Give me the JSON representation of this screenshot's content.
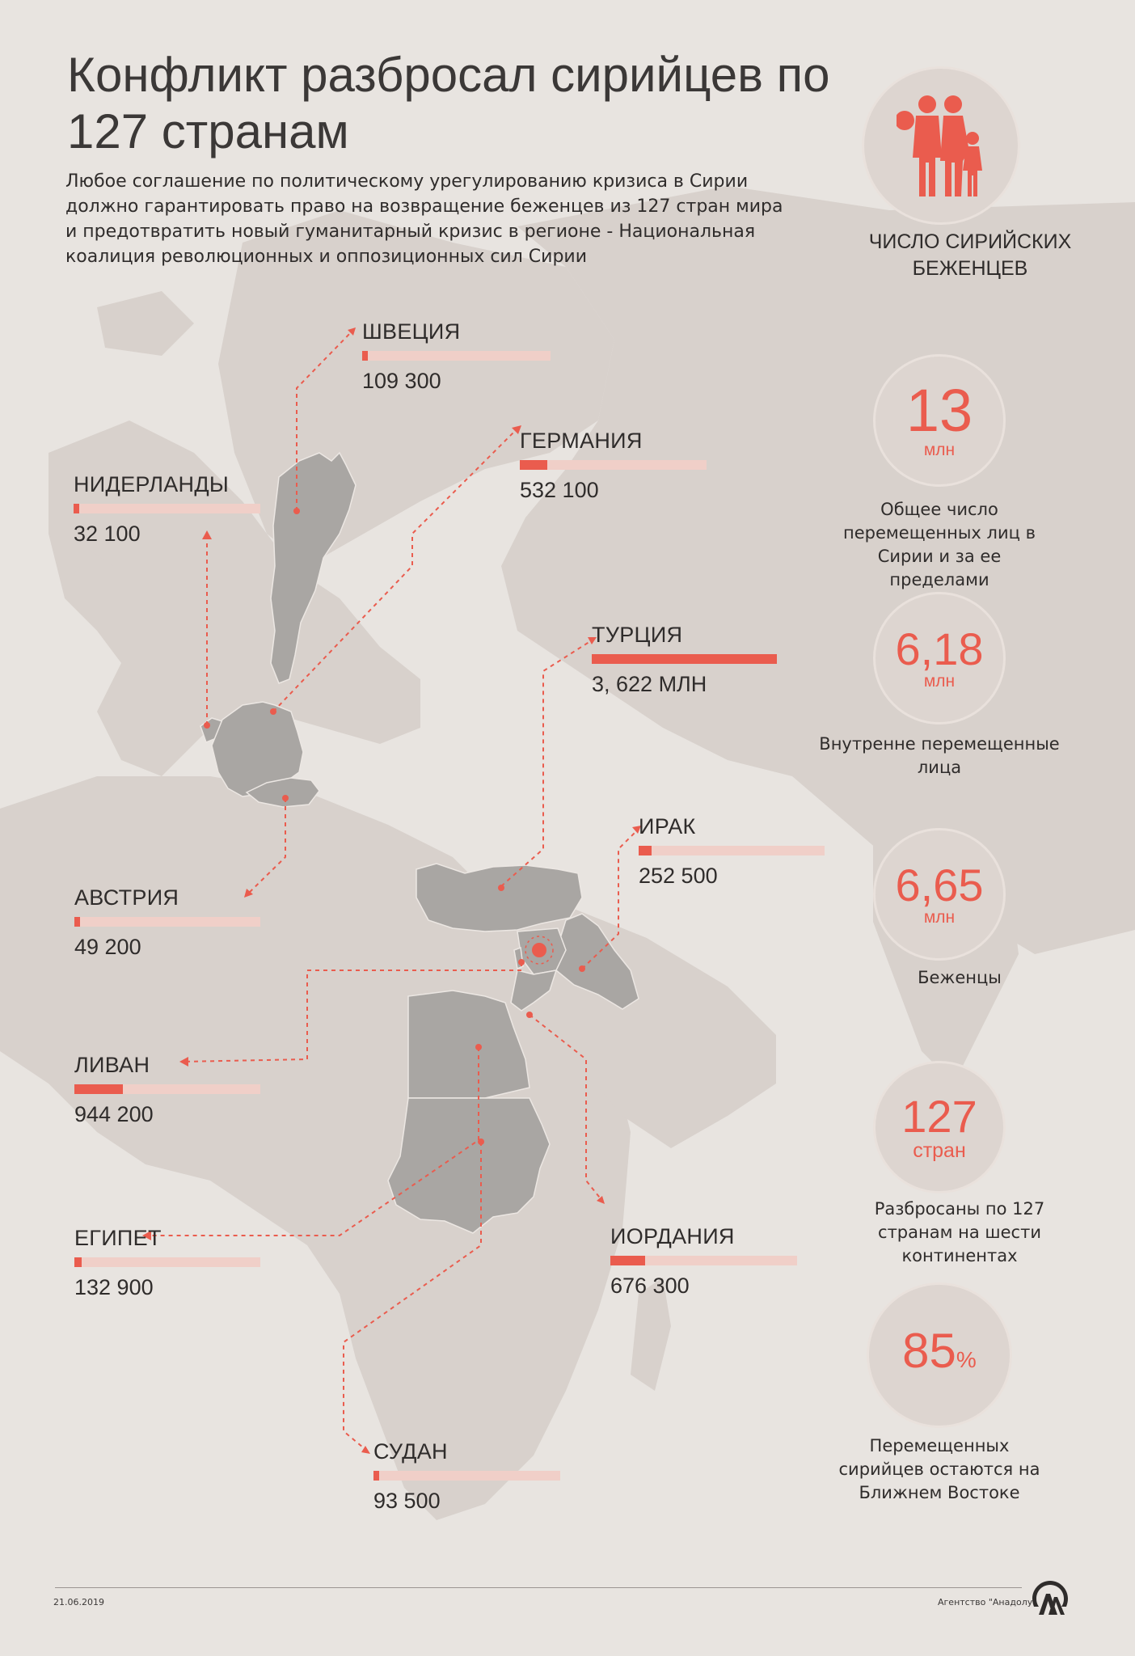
{
  "header": {
    "title": "Конфликт разбросал сирийцев по 127 странам",
    "subtitle": "Любое соглашение по политическому урегулированию кризиса в Сирии должно гарантировать право на возвращение беженцев из 127 стран мира и предотвратить новый гуманитарный кризис в регионе -  Национальная коалиция революционных и оппозиционных сил Сирии",
    "stats_label": "ЧИСЛО СИРИЙСКИХ БЕЖЕНЦЕВ"
  },
  "countries": {
    "sweden": {
      "name": "ШВЕЦИЯ",
      "value": "109 300",
      "share": 0.03
    },
    "germany": {
      "name": "ГЕРМАНИЯ",
      "value": "532 100",
      "share": 0.147
    },
    "netherlands": {
      "name": "НИДЕРЛАНДЫ",
      "value": "32 100",
      "share": 0.009
    },
    "turkey": {
      "name": "ТУРЦИЯ",
      "value": "3, 622 МЛН",
      "share": 1.0
    },
    "iraq": {
      "name": "ИРАК",
      "value": "252  500",
      "share": 0.07
    },
    "austria": {
      "name": "АВСТРИЯ",
      "value": "49 200",
      "share": 0.014
    },
    "lebanon": {
      "name": "ЛИВАН",
      "value": "944 200",
      "share": 0.261
    },
    "egypt": {
      "name": "ЕГИПЕТ",
      "value": "132  900",
      "share": 0.037
    },
    "jordan": {
      "name": "ИОРДАНИЯ",
      "value": "676 300",
      "share": 0.187
    },
    "sudan": {
      "name": "СУДАН",
      "value": "93 500",
      "share": 0.026
    }
  },
  "stats": [
    {
      "number": "13",
      "unit": "млн",
      "description": "Общее число перемещенных лиц в Сирии и за ее пределами"
    },
    {
      "number": "6,18",
      "unit": "млн",
      "description": "Внутренне перемещенные лица"
    },
    {
      "number": "6,65",
      "unit": "млн",
      "description": "Беженцы"
    },
    {
      "number": "127",
      "unit": "стран",
      "description": "Разбросаны по 127 странам на шести континентах"
    },
    {
      "number": "85",
      "unit": "%",
      "description": "Перемещенных сирийцев остаются на Ближнем Востоке"
    }
  ],
  "footer": {
    "date": "21.06.2019",
    "agency": "Агентство \"Анадолу\""
  },
  "colors": {
    "accent": "#ea5c4e",
    "bar_track": "#f0cfc8",
    "highlight_country": "#a9a6a3",
    "land": "#d8d2ce",
    "sea": "#e8e4e0"
  }
}
